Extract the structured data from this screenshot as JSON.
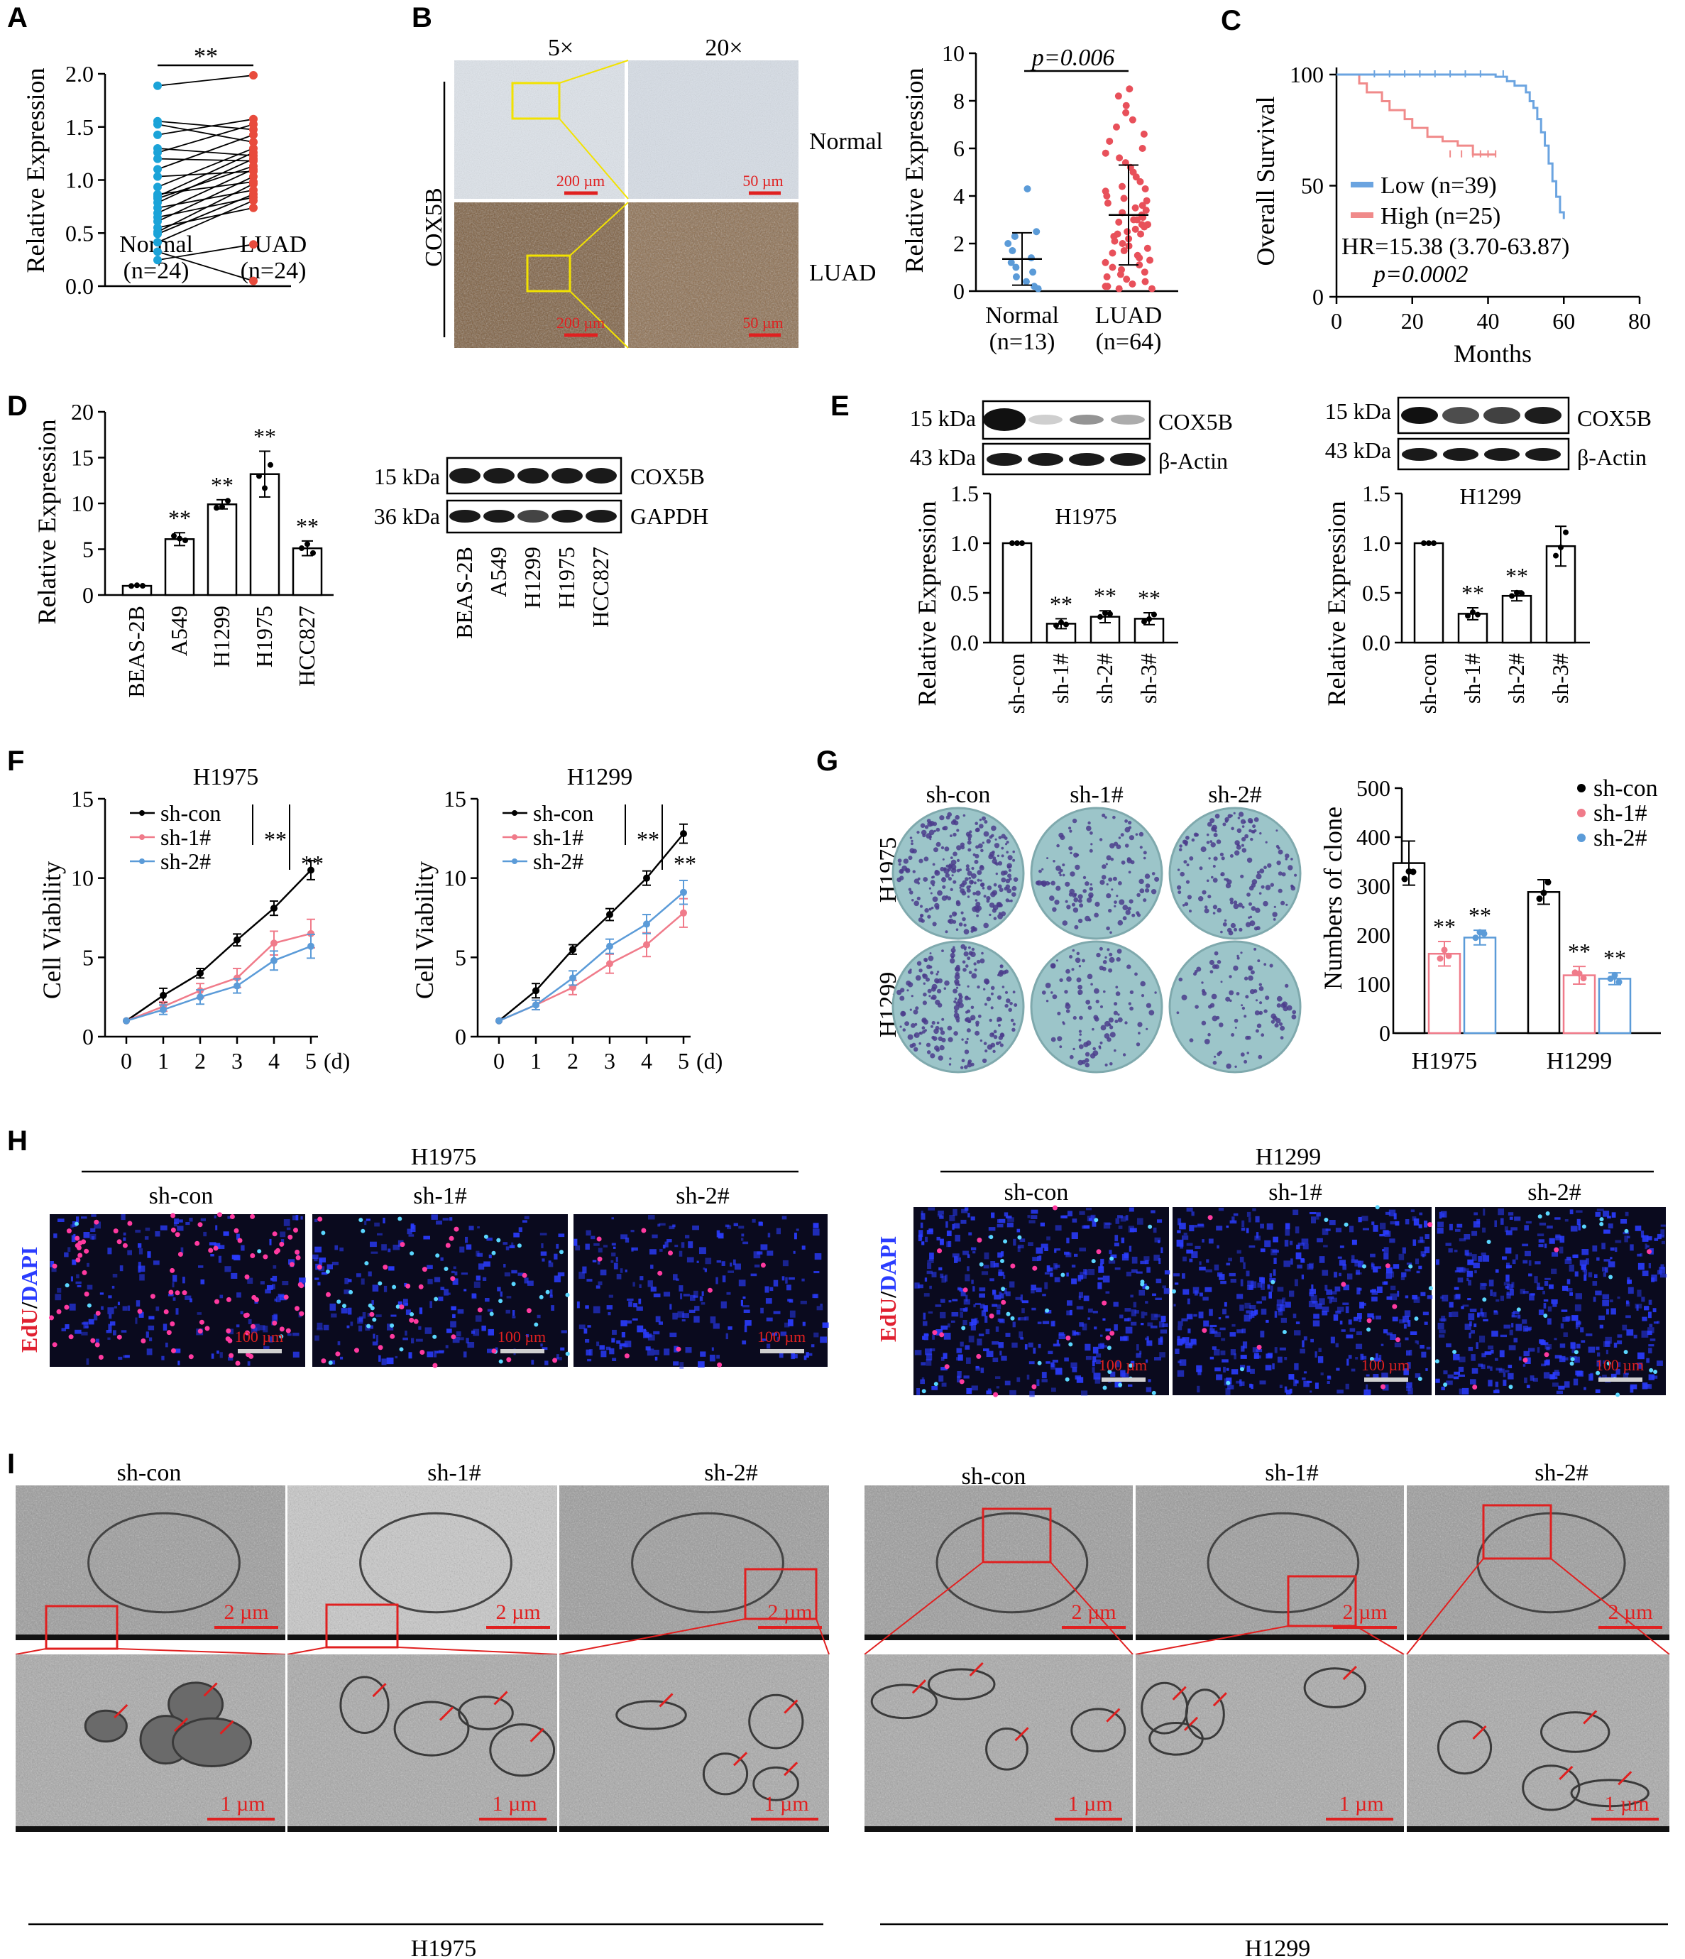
{
  "colors": {
    "cyan": "#1ba3d8",
    "red": "#e84b3c",
    "blue_surv": "#6ba4e0",
    "pink_surv": "#f08a8a",
    "pink_line": "#f07b8a",
    "blue_line": "#5b9bd8",
    "scale_red": "#e02020",
    "ihc_bg": "#d6dde6",
    "colony_bg": "#9cc5c9",
    "colony_dot": "#4b3c8c",
    "edu_bg": "#0a0a1e",
    "dapi": "#2a3cff",
    "edu": "#ff3aa0",
    "tem": "#8c8c8c"
  },
  "panels": {
    "A": "A",
    "B": "B",
    "C": "C",
    "D": "D",
    "E": "E",
    "F": "F",
    "G": "G",
    "H": "H",
    "I": "I"
  },
  "panelA": {
    "chart_data": {
      "type": "scatter-paired",
      "ylabel": "Relative Expression",
      "yticks": [
        "0.0",
        "0.5",
        "1.0",
        "1.5",
        "2.0"
      ],
      "ylim": [
        0,
        2.1
      ],
      "categories": [
        "Normal",
        "LUAD"
      ],
      "n_labels": [
        "(n=24)",
        "(n=24)"
      ],
      "sig": "**",
      "normal": [
        1.92,
        1.58,
        1.55,
        1.45,
        1.32,
        1.28,
        1.22,
        1.12,
        1.05,
        0.95,
        0.88,
        0.86,
        0.84,
        0.8,
        0.75,
        0.7,
        0.66,
        0.62,
        0.56,
        0.52,
        0.5,
        0.42,
        0.33,
        0.25
      ],
      "luad": [
        2.02,
        1.6,
        1.55,
        1.5,
        1.45,
        1.38,
        1.32,
        1.28,
        1.25,
        1.22,
        1.2,
        1.15,
        1.12,
        1.1,
        1.05,
        1.0,
        0.98,
        0.92,
        0.88,
        0.85,
        0.82,
        0.75,
        0.4,
        0.05
      ]
    }
  },
  "panelB": {
    "mag_5x": "5×",
    "mag_20x": "20×",
    "side_label": "COX5B",
    "row_normal": "Normal",
    "row_luad": "LUAD",
    "scale_200": "200 µm",
    "scale_50": "50 µm",
    "chart_data": {
      "type": "scatter",
      "ylabel": "Relative Expression",
      "yticks": [
        "0",
        "2",
        "4",
        "6",
        "8",
        "10"
      ],
      "ylim": [
        0,
        10
      ],
      "categories": [
        "Normal",
        "LUAD"
      ],
      "n_labels": [
        "(n=13)",
        "(n=64)"
      ],
      "sig": "p=0.006",
      "normal_mean": 1.35,
      "normal_sd": 1.1,
      "luad_mean": 3.2,
      "luad_sd": 2.1,
      "normal": [
        4.3,
        2.5,
        2.3,
        2.0,
        1.7,
        1.4,
        1.2,
        1.0,
        0.8,
        0.6,
        0.4,
        0.2,
        0.1
      ],
      "luad": [
        8.5,
        8.2,
        7.8,
        7.5,
        7.2,
        6.9,
        6.6,
        6.3,
        6.0,
        5.8,
        5.6,
        5.4,
        5.2,
        5.0,
        4.8,
        4.6,
        4.4,
        4.3,
        4.2,
        4.0,
        3.9,
        3.8,
        3.7,
        3.6,
        3.5,
        3.4,
        3.3,
        3.2,
        3.1,
        3.0,
        3.0,
        2.9,
        2.8,
        2.8,
        2.7,
        2.6,
        2.5,
        2.4,
        2.4,
        2.3,
        2.2,
        2.1,
        2.0,
        1.9,
        1.8,
        1.7,
        1.6,
        1.5,
        1.4,
        1.3,
        1.2,
        1.1,
        1.0,
        0.9,
        0.8,
        0.7,
        0.6,
        0.5,
        0.4,
        0.3,
        0.2,
        0.2,
        0.1,
        0.1
      ]
    }
  },
  "panelC": {
    "chart_data": {
      "type": "line",
      "ylabel": "Overall Survival",
      "xlabel": "Months",
      "yticks": [
        "0",
        "50",
        "100"
      ],
      "xticks": [
        "0",
        "20",
        "40",
        "60",
        "80"
      ],
      "xlim": [
        0,
        80
      ],
      "ylim": [
        0,
        100
      ],
      "legend": [
        "Low (n=39)",
        "High (n=25)"
      ],
      "hr": "HR=15.38 (3.70-63.87)",
      "p": "p=0.0002",
      "low_x": [
        0,
        40,
        42,
        45,
        47,
        50,
        51,
        52,
        53,
        54,
        55,
        56,
        57,
        58,
        59,
        60
      ],
      "low_y": [
        100,
        100,
        99,
        97,
        95,
        92,
        88,
        85,
        80,
        74,
        68,
        60,
        52,
        45,
        38,
        35
      ],
      "high_x": [
        0,
        6,
        8,
        12,
        14,
        18,
        20,
        24,
        28,
        32,
        36,
        42
      ],
      "high_y": [
        100,
        96,
        92,
        88,
        84,
        80,
        76,
        72,
        70,
        68,
        64,
        64
      ]
    }
  },
  "panelD": {
    "blot_labels": {
      "kda15": "15 kDa",
      "kda36": "36 kDa",
      "cox5b": "COX5B",
      "gapdh": "GAPDH"
    },
    "chart_data": {
      "type": "bar",
      "ylabel": "Relative Expression",
      "yticks": [
        "0",
        "5",
        "10",
        "15",
        "20"
      ],
      "ylim": [
        0,
        20
      ],
      "categories": [
        "BEAS-2B",
        "A549",
        "H1299",
        "H1975",
        "HCC827"
      ],
      "values": [
        1.0,
        6.1,
        9.9,
        13.2,
        5.1
      ],
      "errors": [
        0.1,
        0.7,
        0.5,
        2.5,
        0.8
      ],
      "sig": [
        "",
        "**",
        "**",
        "**",
        "**"
      ]
    }
  },
  "panelE": {
    "blot_labels": {
      "kda15": "15 kDa",
      "kda43": "43 kDa",
      "cox5b": "COX5B",
      "actin": "β-Actin"
    },
    "charts": [
      {
        "type": "bar",
        "title": "H1975",
        "ylabel": "Relative Expression",
        "yticks": [
          "0.0",
          "0.5",
          "1.0",
          "1.5"
        ],
        "ylim": [
          0,
          1.5
        ],
        "categories": [
          "sh-con",
          "sh-1#",
          "sh-2#",
          "sh-3#"
        ],
        "values": [
          1.0,
          0.19,
          0.26,
          0.24
        ],
        "errors": [
          0.0,
          0.05,
          0.06,
          0.06
        ],
        "sig": [
          "",
          "**",
          "**",
          "**"
        ]
      },
      {
        "type": "bar",
        "title": "H1299",
        "ylabel": "Relative Expression",
        "yticks": [
          "0.0",
          "0.5",
          "1.0",
          "1.5"
        ],
        "ylim": [
          0,
          1.5
        ],
        "categories": [
          "sh-con",
          "sh-1#",
          "sh-2#",
          "sh-3#"
        ],
        "values": [
          1.0,
          0.29,
          0.47,
          0.97
        ],
        "errors": [
          0.0,
          0.06,
          0.05,
          0.2
        ],
        "sig": [
          "",
          "**",
          "**",
          ""
        ]
      }
    ]
  },
  "panelF": {
    "charts": [
      {
        "type": "line",
        "title": "H1975",
        "ylabel": "Cell Viability",
        "xticks": [
          "0",
          "1",
          "2",
          "3",
          "4",
          "5"
        ],
        "xunit": "(d)",
        "yticks": [
          "0",
          "5",
          "10",
          "15"
        ],
        "ylim": [
          0,
          15
        ],
        "legend": [
          "sh-con",
          "sh-1#",
          "sh-2#"
        ],
        "sig": [
          "**",
          "**"
        ],
        "series": [
          {
            "name": "sh-con",
            "values": [
              1.0,
              2.6,
              4.0,
              6.1,
              8.1,
              10.5
            ]
          },
          {
            "name": "sh-1#",
            "values": [
              1.0,
              1.9,
              2.9,
              3.7,
              5.9,
              6.5
            ]
          },
          {
            "name": "sh-2#",
            "values": [
              1.0,
              1.7,
              2.5,
              3.2,
              4.8,
              5.7
            ]
          }
        ]
      },
      {
        "type": "line",
        "title": "H1299",
        "ylabel": "Cell Viability",
        "xticks": [
          "0",
          "1",
          "2",
          "3",
          "4",
          "5"
        ],
        "xunit": "(d)",
        "yticks": [
          "0",
          "5",
          "10",
          "15"
        ],
        "ylim": [
          0,
          15
        ],
        "legend": [
          "sh-con",
          "sh-1#",
          "sh-2#"
        ],
        "sig": [
          "**",
          "**"
        ],
        "series": [
          {
            "name": "sh-con",
            "values": [
              1.0,
              2.9,
              5.5,
              7.7,
              10.0,
              12.8
            ]
          },
          {
            "name": "sh-1#",
            "values": [
              1.0,
              2.0,
              3.1,
              4.6,
              5.8,
              7.8
            ]
          },
          {
            "name": "sh-2#",
            "values": [
              1.0,
              2.0,
              3.7,
              5.7,
              7.1,
              9.1
            ]
          }
        ]
      }
    ]
  },
  "panelG": {
    "col_labels": [
      "sh-con",
      "sh-1#",
      "sh-2#"
    ],
    "row_labels": [
      "H1975",
      "H1299"
    ],
    "chart_data": {
      "type": "bar",
      "ylabel": "Numbers of clone",
      "yticks": [
        "0",
        "100",
        "200",
        "300",
        "400",
        "500"
      ],
      "ylim": [
        0,
        500
      ],
      "categories": [
        "H1975",
        "H1299"
      ],
      "legend": [
        "sh-con",
        "sh-1#",
        "sh-2#"
      ],
      "series": [
        {
          "name": "sh-con",
          "values": [
            347,
            288
          ],
          "errors": [
            45,
            25
          ]
        },
        {
          "name": "sh-1#",
          "values": [
            162,
            118
          ],
          "errors": [
            25,
            18
          ]
        },
        {
          "name": "sh-2#",
          "values": [
            195,
            111
          ],
          "errors": [
            15,
            12
          ]
        }
      ],
      "sig": "**"
    }
  },
  "panelH": {
    "groups": [
      "H1975",
      "H1299"
    ],
    "cols": [
      "sh-con",
      "sh-1#",
      "sh-2#"
    ],
    "side_edu": "EdU",
    "side_sep": "/",
    "side_dapi": "DAPI",
    "scale": "100 µm"
  },
  "panelI": {
    "cols": [
      "sh-con",
      "sh-1#",
      "sh-2#"
    ],
    "groups": [
      "H1975",
      "H1299"
    ],
    "scale_top": "2 µm",
    "scale_bottom": "1 µm"
  }
}
